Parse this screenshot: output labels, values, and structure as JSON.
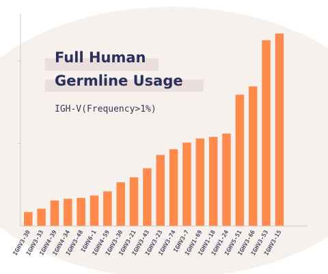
{
  "chart_data": {
    "type": "bar",
    "title_lines": [
      "Full Human",
      "Germline Usage"
    ],
    "subtitle": "IGH-V(Frequency>1%)",
    "categories": [
      "IGHV3-30",
      "IGHV3-33",
      "IGHV4-39",
      "IGHV4-34",
      "IGHV3-48",
      "IGHV6-1",
      "IGHV4-59",
      "IGHV3-30",
      "IGHV3-21",
      "IGHV3-43",
      "IGHV3-23",
      "IGHV3-74",
      "IGHV3-7",
      "IGHV1-69",
      "IGHV1-18",
      "IGHV1-24",
      "IGHV5-51",
      "IGHV3-66",
      "IGHV3-53",
      "IGHV3-15"
    ],
    "values": [
      1.7,
      2.1,
      3.1,
      3.3,
      3.4,
      3.7,
      4.2,
      5.3,
      5.9,
      7.0,
      8.6,
      9.3,
      10.1,
      10.6,
      10.8,
      11.2,
      15.9,
      16.9,
      22.5,
      23.3
    ],
    "ylim": [
      0,
      25
    ],
    "yticks": [
      0,
      10,
      20
    ],
    "grid": false,
    "colors": {
      "bar": "#ff8a4c",
      "title": "#2a2f5c",
      "title_highlight": "#eadfdc",
      "background_blob": "#f7f1ee",
      "axis": "#cfc9c7"
    }
  }
}
